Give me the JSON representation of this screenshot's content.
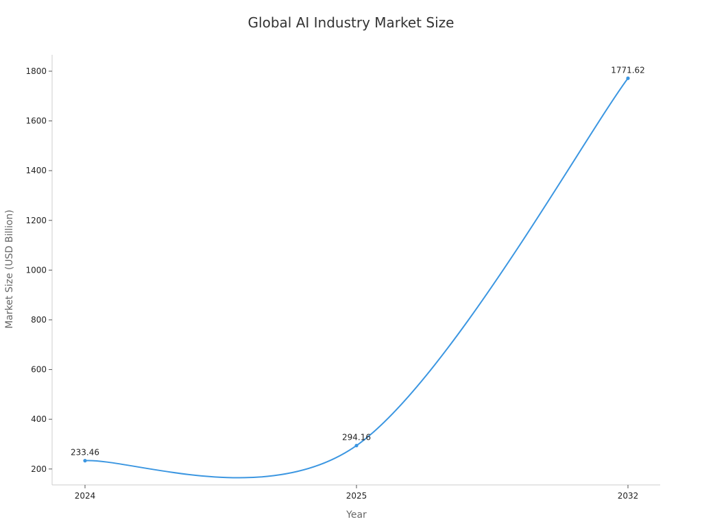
{
  "chart_data": {
    "type": "line",
    "title": "Global AI Industry Market Size",
    "xlabel": "Year",
    "ylabel": "Market Size (USD Billion)",
    "categories": [
      "2024",
      "2025",
      "2032"
    ],
    "series": [
      {
        "values": [
          233.46,
          294.16,
          1771.62
        ],
        "color": "#3b96e1"
      }
    ],
    "data_labels": [
      "233.46",
      "294.16",
      "1771.62"
    ],
    "y_ticks": [
      200,
      400,
      600,
      800,
      1000,
      1200,
      1400,
      1600,
      1800
    ],
    "ylim": [
      136,
      1866
    ],
    "grid": false,
    "smooth": true,
    "axis_color": "#cccccc"
  }
}
